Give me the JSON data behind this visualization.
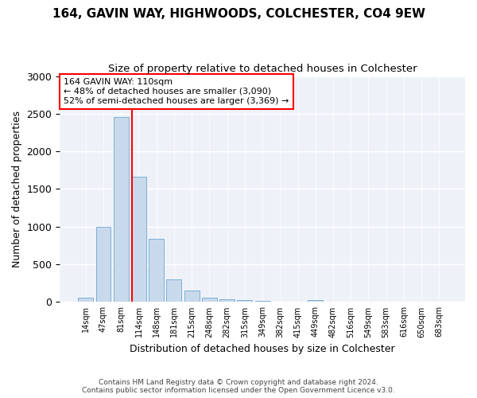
{
  "title1": "164, GAVIN WAY, HIGHWOODS, COLCHESTER, CO4 9EW",
  "title2": "Size of property relative to detached houses in Colchester",
  "xlabel": "Distribution of detached houses by size in Colchester",
  "ylabel": "Number of detached properties",
  "bar_labels": [
    "14sqm",
    "47sqm",
    "81sqm",
    "114sqm",
    "148sqm",
    "181sqm",
    "215sqm",
    "248sqm",
    "282sqm",
    "315sqm",
    "349sqm",
    "382sqm",
    "415sqm",
    "449sqm",
    "482sqm",
    "516sqm",
    "549sqm",
    "583sqm",
    "616sqm",
    "650sqm",
    "683sqm"
  ],
  "bar_values": [
    55,
    1000,
    2460,
    1660,
    840,
    300,
    150,
    55,
    40,
    25,
    20,
    0,
    0,
    30,
    0,
    0,
    0,
    0,
    0,
    0,
    0
  ],
  "bar_color": "#c9d9ec",
  "bar_edgecolor": "#7bafd4",
  "vline_x_index": 2.62,
  "vline_color": "red",
  "vline_linewidth": 1.5,
  "annotation_title": "164 GAVIN WAY: 110sqm",
  "annotation_line1": "← 48% of detached houses are smaller (3,090)",
  "annotation_line2": "52% of semi-detached houses are larger (3,369) →",
  "annotation_box_color": "white",
  "annotation_box_edgecolor": "red",
  "ylim": [
    0,
    3000
  ],
  "yticks": [
    0,
    500,
    1000,
    1500,
    2000,
    2500,
    3000
  ],
  "footer1": "Contains HM Land Registry data © Crown copyright and database right 2024.",
  "footer2": "Contains public sector information licensed under the Open Government Licence v3.0.",
  "background_color": "#eef2f8",
  "figsize": [
    6.0,
    5.0
  ],
  "dpi": 100
}
